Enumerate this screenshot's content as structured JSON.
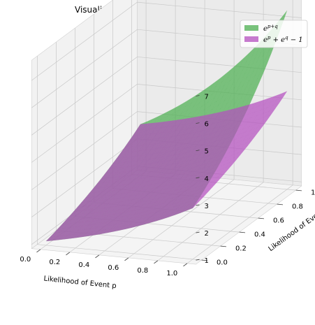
{
  "chart_data": {
    "type": "surface3d",
    "title": "Visualization of Supraadditive Inequality",
    "xlabel": "Likelihood of Event p",
    "ylabel": "Likelihood of Event q",
    "zlabel": "",
    "xlim": [
      0,
      1
    ],
    "ylim": [
      0,
      1
    ],
    "zlim": [
      1,
      7.39
    ],
    "xticks": [
      "0.0",
      "0.2",
      "0.4",
      "0.6",
      "0.8",
      "1.0"
    ],
    "yticks": [
      "0.0",
      "0.2",
      "0.4",
      "0.6",
      "0.8",
      "1.0"
    ],
    "zticks": [
      "1",
      "2",
      "3",
      "4",
      "5",
      "6",
      "7"
    ],
    "grid": true,
    "legend_position": "top-right",
    "series": [
      {
        "name": "e^{p+q}",
        "legend_text": {
          "base": "e",
          "sup": "p+q",
          "rest": ""
        },
        "function": "exp(p+q)",
        "color": "#4caf50",
        "corner_values": {
          "p0_q0": 1.0,
          "p1_q0": 2.72,
          "p0_q1": 2.72,
          "p1_q1": 7.39
        }
      },
      {
        "name": "e^p + e^q - 1",
        "legend_text": {
          "base": "e",
          "sup": "p",
          "mid": " + e",
          "sup2": "q",
          "rest": " − 1"
        },
        "function": "exp(p)+exp(q)-1",
        "color": "#b44fbf",
        "corner_values": {
          "p0_q0": 1.0,
          "p1_q0": 2.72,
          "p0_q1": 2.72,
          "p1_q1": 4.44
        }
      }
    ]
  }
}
